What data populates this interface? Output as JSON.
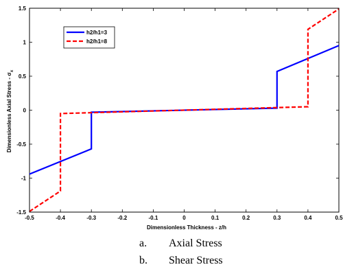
{
  "chart_data": {
    "type": "line",
    "xlabel": "Dimensionless Thickness - z/h",
    "ylabel_text": "Dimensionless Axial Stress - σ",
    "ylabel_subscript": "x",
    "xlim": [
      -0.5,
      0.5
    ],
    "ylim": [
      -1.5,
      1.5
    ],
    "xticks": [
      -0.5,
      -0.4,
      -0.3,
      -0.2,
      -0.1,
      0,
      0.1,
      0.2,
      0.3,
      0.4,
      0.5
    ],
    "xtick_labels": [
      "-0.5",
      "-0.4",
      "-0.3",
      "-0.2",
      "-0.1",
      "0",
      "0.1",
      "0.2",
      "0.3",
      "0.4",
      "0.5"
    ],
    "yticks": [
      -1.5,
      -1,
      -0.5,
      0,
      0.5,
      1,
      1.5
    ],
    "ytick_labels": [
      "-1.5",
      "-1",
      "-0.5",
      "0",
      "0.5",
      "1",
      "1.5"
    ],
    "grid": false,
    "legend_position": "top-left",
    "series": [
      {
        "name": "h2/h1=3",
        "color": "#0000ff",
        "dash": "solid",
        "x": [
          -0.5,
          -0.3,
          -0.3,
          0.3,
          0.3,
          0.5
        ],
        "y": [
          -0.94,
          -0.57,
          -0.03,
          0.03,
          0.57,
          0.95
        ]
      },
      {
        "name": "h2/h1=8",
        "color": "#ff0000",
        "dash": "dashed",
        "x": [
          -0.5,
          -0.4,
          -0.4,
          0.4,
          0.4,
          0.5
        ],
        "y": [
          -1.49,
          -1.19,
          -0.05,
          0.05,
          1.19,
          1.49
        ]
      }
    ]
  },
  "captions": [
    {
      "letter": "a.",
      "text": "Axial Stress"
    },
    {
      "letter": "b.",
      "text": "Shear Stress"
    }
  ]
}
